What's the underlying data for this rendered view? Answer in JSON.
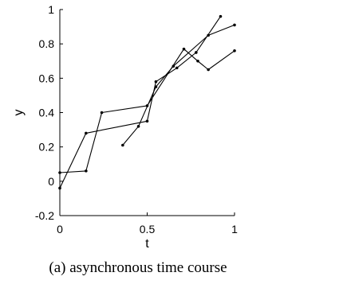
{
  "chart_data": {
    "type": "line",
    "title": "",
    "xlabel": "t",
    "ylabel": "y",
    "xlim": [
      0,
      1
    ],
    "ylim": [
      -0.2,
      1
    ],
    "xticks": [
      "0",
      "0.5",
      "1"
    ],
    "yticks": [
      "-0.2",
      "0",
      "0.2",
      "0.4",
      "0.6",
      "0.8",
      "1"
    ],
    "grid": false,
    "legend": "none",
    "line_color": "#000000",
    "series": [
      {
        "points": [
          [
            0.0,
            -0.04
          ],
          [
            0.15,
            0.28
          ],
          [
            0.5,
            0.35
          ],
          [
            0.55,
            0.58
          ],
          [
            0.67,
            0.66
          ],
          [
            0.78,
            0.75
          ],
          [
            0.92,
            0.96
          ]
        ]
      },
      {
        "points": [
          [
            0.0,
            0.05
          ],
          [
            0.15,
            0.06
          ],
          [
            0.24,
            0.4
          ],
          [
            0.5,
            0.44
          ],
          [
            0.71,
            0.77
          ],
          [
            0.79,
            0.7
          ],
          [
            0.85,
            0.65
          ],
          [
            1.0,
            0.76
          ]
        ]
      },
      {
        "points": [
          [
            0.36,
            0.21
          ],
          [
            0.45,
            0.32
          ],
          [
            0.55,
            0.55
          ],
          [
            0.65,
            0.67
          ],
          [
            0.85,
            0.85
          ],
          [
            1.0,
            0.91
          ]
        ]
      }
    ]
  },
  "caption": "(a) asynchronous time course"
}
